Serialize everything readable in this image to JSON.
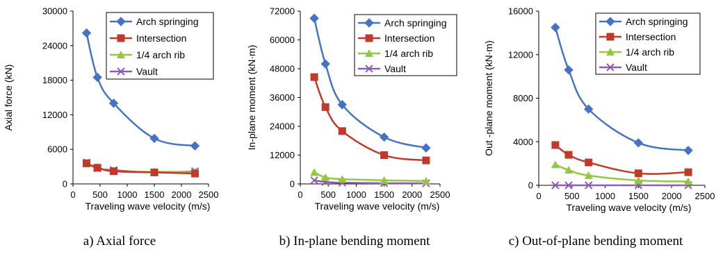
{
  "colors": {
    "arch": "#4472C4",
    "intersection": "#C0392B",
    "quarter": "#92C83E",
    "vault": "#8E5BB5"
  },
  "chart_data": [
    {
      "type": "line",
      "caption": "a) Axial force",
      "xlabel": "Traveling wave velocity (m/s)",
      "ylabel": "Axial force (kN)",
      "xlim": [
        0,
        2500
      ],
      "ylim": [
        0,
        30000
      ],
      "xticks": [
        "0",
        "500",
        "1000",
        "1500",
        "2000",
        "2500"
      ],
      "yticks": [
        "0",
        "6000",
        "12000",
        "18000",
        "24000",
        "30000"
      ],
      "x": [
        250,
        450,
        750,
        1500,
        2250
      ],
      "series": [
        {
          "name": "Arch springing",
          "values": [
            26200,
            18500,
            14000,
            7900,
            6600
          ]
        },
        {
          "name": "Intersection",
          "values": [
            3600,
            2800,
            2200,
            2000,
            1800
          ]
        },
        {
          "name": "1/4 arch rib",
          "values": [
            3500,
            2900,
            2200,
            2100,
            2100
          ]
        },
        {
          "name": "Vault",
          "values": [
            3700,
            2700,
            2400,
            2000,
            2200
          ]
        }
      ]
    },
    {
      "type": "line",
      "caption": "b) In-plane bending moment",
      "xlabel": "Traveling wave velocity (m/s)",
      "ylabel": "In-plane moment (kN·m)",
      "xlim": [
        0,
        2500
      ],
      "ylim": [
        0,
        72000
      ],
      "xticks": [
        "0",
        "500",
        "1000",
        "1500",
        "2000",
        "2500"
      ],
      "yticks": [
        "0",
        "12000",
        "24000",
        "36000",
        "48000",
        "60000",
        "72000"
      ],
      "x": [
        250,
        450,
        750,
        1500,
        2250
      ],
      "series": [
        {
          "name": "Arch springing",
          "values": [
            69000,
            50000,
            33000,
            19500,
            15000
          ]
        },
        {
          "name": "Intersection",
          "values": [
            44500,
            32000,
            22000,
            12000,
            9800
          ]
        },
        {
          "name": "1/4 arch rib",
          "values": [
            4800,
            2700,
            2000,
            1500,
            1200
          ]
        },
        {
          "name": "Vault",
          "values": [
            1500,
            800,
            500,
            300,
            250
          ]
        }
      ]
    },
    {
      "type": "line",
      "caption": "c) Out-of-plane bending moment",
      "xlabel": "Traveling wave velocity (m/s)",
      "ylabel": "Out -plane moment (kN·m)",
      "xlim": [
        0,
        2500
      ],
      "ylim": [
        0,
        16000
      ],
      "xticks": [
        "0",
        "500",
        "1000",
        "1500",
        "2000",
        "2500"
      ],
      "yticks": [
        "0",
        "4000",
        "8000",
        "12000",
        "16000"
      ],
      "x": [
        250,
        450,
        750,
        1500,
        2250
      ],
      "series": [
        {
          "name": "Arch springing",
          "values": [
            14500,
            10600,
            7000,
            3900,
            3200
          ]
        },
        {
          "name": "Intersection",
          "values": [
            3700,
            2800,
            2100,
            1100,
            1200
          ]
        },
        {
          "name": "1/4 arch rib",
          "values": [
            1900,
            1400,
            900,
            450,
            350
          ]
        },
        {
          "name": "Vault",
          "values": [
            0,
            0,
            0,
            0,
            0
          ]
        }
      ]
    }
  ]
}
